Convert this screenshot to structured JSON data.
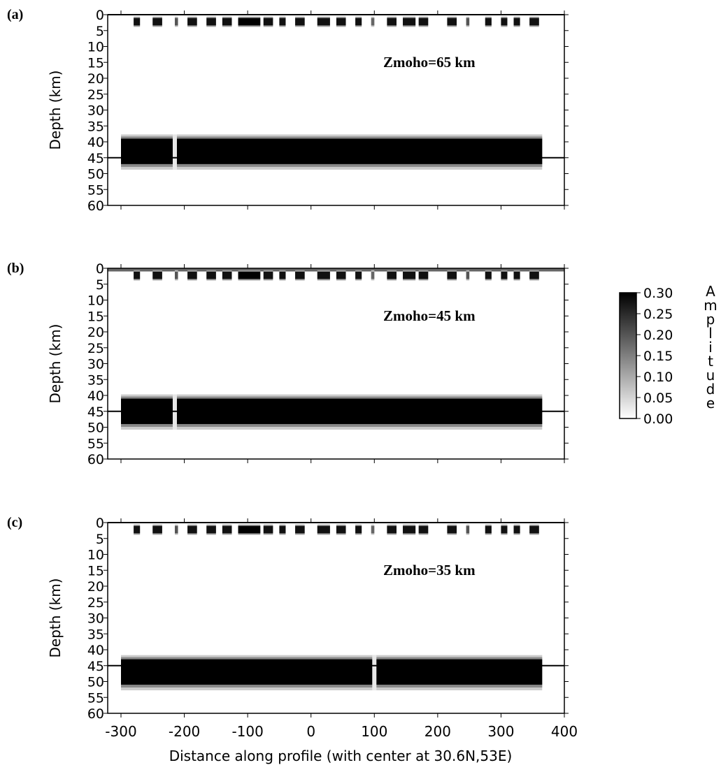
{
  "chart_data": [
    {
      "type": "heatmap",
      "panel_label": "(a)",
      "annotation": "Zmoho=65 km",
      "ylabel": "Depth (km)",
      "xlim": [
        -320,
        400
      ],
      "ylim": [
        60,
        0
      ],
      "y_ticks": [
        "0",
        "5",
        "10",
        "15",
        "20",
        "25",
        "30",
        "35",
        "40",
        "45",
        "50",
        "55",
        "60"
      ],
      "reference_lines_depth": [
        0,
        45
      ],
      "surface_band": null,
      "bands": [
        {
          "name": "shallow",
          "depth_range": [
            1.5,
            2.5
          ],
          "blocks": [
            [
              -280,
              -270,
              0.28
            ],
            [
              -250,
              -235,
              0.28
            ],
            [
              -215,
              -210,
              0.2
            ],
            [
              -195,
              -180,
              0.28
            ],
            [
              -165,
              -150,
              0.28
            ],
            [
              -140,
              -125,
              0.28
            ],
            [
              -115,
              -80,
              0.3
            ],
            [
              -75,
              -60,
              0.28
            ],
            [
              -50,
              -40,
              0.28
            ],
            [
              -25,
              -10,
              0.28
            ],
            [
              10,
              30,
              0.28
            ],
            [
              40,
              55,
              0.28
            ],
            [
              70,
              80,
              0.28
            ],
            [
              95,
              100,
              0.18
            ],
            [
              120,
              135,
              0.28
            ],
            [
              145,
              165,
              0.28
            ],
            [
              170,
              185,
              0.28
            ],
            [
              215,
              230,
              0.28
            ],
            [
              245,
              250,
              0.2
            ],
            [
              275,
              285,
              0.28
            ],
            [
              300,
              310,
              0.28
            ],
            [
              320,
              330,
              0.28
            ],
            [
              345,
              360,
              0.28
            ]
          ]
        },
        {
          "name": "moho",
          "depth_range": [
            39,
            47
          ],
          "gaps": [
            -215
          ],
          "gap_width": 6,
          "amplitude": 0.3
        }
      ]
    },
    {
      "type": "heatmap",
      "panel_label": "(b)",
      "annotation": "Zmoho=45 km",
      "ylabel": "Depth (km)",
      "xlim": [
        -320,
        400
      ],
      "ylim": [
        60,
        0
      ],
      "y_ticks": [
        "0",
        "5",
        "10",
        "15",
        "20",
        "25",
        "30",
        "35",
        "40",
        "45",
        "50",
        "55",
        "60"
      ],
      "reference_lines_depth": [
        45
      ],
      "surface_band": {
        "depth_range": [
          0,
          1
        ],
        "amplitude": 0.18
      },
      "bands": [
        {
          "name": "shallow",
          "depth_range": [
            1.5,
            2.5
          ],
          "blocks": [
            [
              -280,
              -270,
              0.28
            ],
            [
              -250,
              -235,
              0.28
            ],
            [
              -215,
              -210,
              0.2
            ],
            [
              -195,
              -180,
              0.28
            ],
            [
              -165,
              -150,
              0.28
            ],
            [
              -140,
              -125,
              0.28
            ],
            [
              -115,
              -80,
              0.3
            ],
            [
              -75,
              -60,
              0.28
            ],
            [
              -50,
              -40,
              0.28
            ],
            [
              -25,
              -10,
              0.28
            ],
            [
              10,
              30,
              0.28
            ],
            [
              40,
              55,
              0.28
            ],
            [
              70,
              80,
              0.28
            ],
            [
              95,
              100,
              0.18
            ],
            [
              120,
              135,
              0.28
            ],
            [
              145,
              165,
              0.28
            ],
            [
              170,
              185,
              0.28
            ],
            [
              215,
              230,
              0.28
            ],
            [
              245,
              250,
              0.2
            ],
            [
              275,
              285,
              0.28
            ],
            [
              300,
              310,
              0.28
            ],
            [
              320,
              330,
              0.28
            ],
            [
              345,
              360,
              0.28
            ]
          ]
        },
        {
          "name": "moho",
          "depth_range": [
            41,
            49
          ],
          "gaps": [
            -215
          ],
          "gap_width": 6,
          "amplitude": 0.3
        }
      ]
    },
    {
      "type": "heatmap",
      "panel_label": "(c)",
      "annotation": "Zmoho=35 km",
      "ylabel": "Depth (km)",
      "xlabel": "Distance along profile (with center at 30.6N,53E)",
      "x_ticks": [
        "-300",
        "-200",
        "-100",
        "0",
        "100",
        "200",
        "300",
        "400"
      ],
      "xlim": [
        -320,
        400
      ],
      "ylim": [
        60,
        0
      ],
      "y_ticks": [
        "0",
        "5",
        "10",
        "15",
        "20",
        "25",
        "30",
        "35",
        "40",
        "45",
        "50",
        "55",
        "60"
      ],
      "reference_lines_depth": [
        0,
        45
      ],
      "surface_band": null,
      "bands": [
        {
          "name": "shallow",
          "depth_range": [
            1.5,
            2.5
          ],
          "blocks": [
            [
              -280,
              -270,
              0.28
            ],
            [
              -250,
              -235,
              0.28
            ],
            [
              -215,
              -210,
              0.2
            ],
            [
              -195,
              -180,
              0.28
            ],
            [
              -165,
              -150,
              0.28
            ],
            [
              -140,
              -125,
              0.28
            ],
            [
              -115,
              -80,
              0.3
            ],
            [
              -75,
              -60,
              0.28
            ],
            [
              -50,
              -40,
              0.28
            ],
            [
              -25,
              -10,
              0.28
            ],
            [
              10,
              30,
              0.28
            ],
            [
              40,
              55,
              0.28
            ],
            [
              70,
              80,
              0.28
            ],
            [
              95,
              100,
              0.18
            ],
            [
              120,
              135,
              0.28
            ],
            [
              145,
              165,
              0.28
            ],
            [
              170,
              185,
              0.28
            ],
            [
              215,
              230,
              0.28
            ],
            [
              245,
              250,
              0.2
            ],
            [
              275,
              285,
              0.28
            ],
            [
              300,
              310,
              0.28
            ],
            [
              320,
              330,
              0.28
            ],
            [
              345,
              360,
              0.28
            ]
          ]
        },
        {
          "name": "moho",
          "depth_range": [
            43,
            51
          ],
          "gaps": [
            100
          ],
          "gap_width": 6,
          "amplitude": 0.3
        }
      ]
    }
  ],
  "colorbar": {
    "label": "Amplitude",
    "range": [
      0.0,
      0.3
    ],
    "ticks": [
      "0.30",
      "0.25",
      "0.20",
      "0.15",
      "0.10",
      "0.05",
      "0.00"
    ],
    "colors": [
      "#ffffff",
      "#000000"
    ]
  }
}
